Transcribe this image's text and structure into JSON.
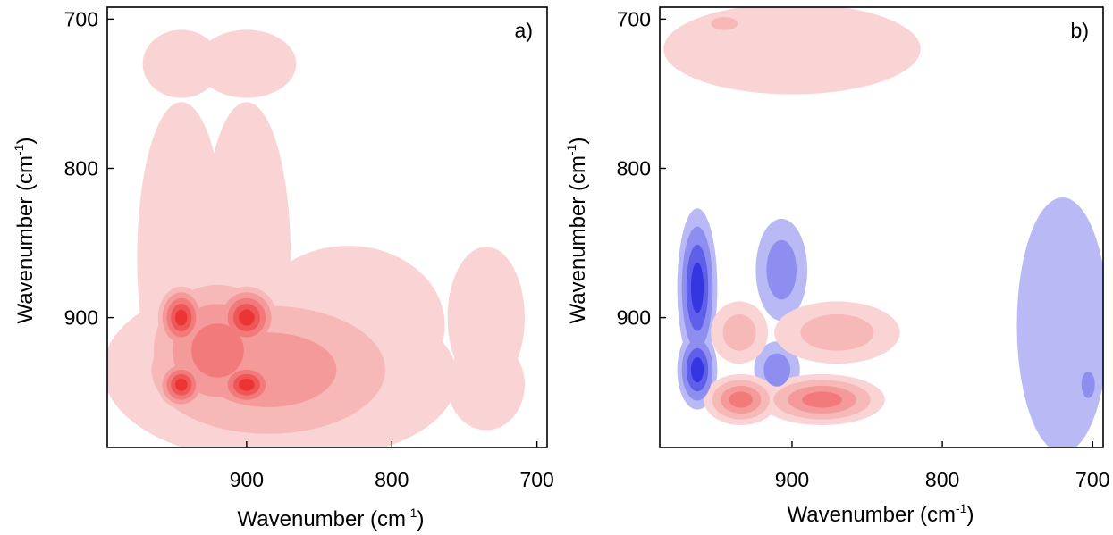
{
  "colors": {
    "positive_levels": [
      "#fad4d4",
      "#f7b8b8",
      "#f59a9a",
      "#f27a7a",
      "#ef5656",
      "#ec3434"
    ],
    "negative_levels": [
      "#b9b9f5",
      "#8e8ef0",
      "#5f5fe9",
      "#3535e2"
    ],
    "frame": "#000000"
  },
  "chart_data": [
    {
      "type": "heatmap",
      "panel_label": "a)",
      "title": "",
      "xlabel": "Wavenumber (cm",
      "xlabel_sup": "-1",
      "xlabel_suffix": ")",
      "ylabel": "Wavenumber (cm",
      "ylabel_sup": "-1",
      "ylabel_suffix": ")",
      "x_direction": "reversed",
      "y_direction": "reversed",
      "xlim": [
        996,
        693
      ],
      "ylim": [
        692,
        987
      ],
      "xticks": [
        {
          "value": 900,
          "label": "900"
        },
        {
          "value": 800,
          "label": "800"
        },
        {
          "value": 700,
          "label": "700"
        }
      ],
      "yticks": [
        {
          "value": 700,
          "label": "700"
        },
        {
          "value": 800,
          "label": "800"
        },
        {
          "value": 900,
          "label": "900"
        }
      ],
      "description": "Synchronous 2D correlation spectrum: positive intensity only; autopeaks near 945 and 900 cm-1 with cross peaks between them; weaker features near 735 cm-1.",
      "peaks": [
        {
          "x": 945,
          "y": 945,
          "sign": 1,
          "level": 6,
          "sx": 10,
          "sy": 10
        },
        {
          "x": 900,
          "y": 945,
          "sign": 1,
          "level": 6,
          "sx": 13,
          "sy": 10
        },
        {
          "x": 945,
          "y": 900,
          "sign": 1,
          "level": 6,
          "sx": 10,
          "sy": 13
        },
        {
          "x": 900,
          "y": 900,
          "sign": 1,
          "level": 6,
          "sx": 13,
          "sy": 13
        },
        {
          "x": 920,
          "y": 922,
          "sign": 1,
          "level": 4,
          "sx": 30,
          "sy": 30
        },
        {
          "x": 885,
          "y": 935,
          "sign": 1,
          "level": 3,
          "sx": 60,
          "sy": 32
        },
        {
          "x": 850,
          "y": 940,
          "sign": 1,
          "level": 1,
          "sx": 50,
          "sy": 28
        },
        {
          "x": 830,
          "y": 905,
          "sign": 1,
          "level": 1,
          "sx": 35,
          "sy": 28
        },
        {
          "x": 945,
          "y": 860,
          "sign": 1,
          "level": 1,
          "sx": 16,
          "sy": 55
        },
        {
          "x": 900,
          "y": 860,
          "sign": 1,
          "level": 1,
          "sx": 16,
          "sy": 55
        },
        {
          "x": 735,
          "y": 945,
          "sign": 1,
          "level": 1,
          "sx": 14,
          "sy": 16
        },
        {
          "x": 735,
          "y": 900,
          "sign": 1,
          "level": 1,
          "sx": 14,
          "sy": 25
        },
        {
          "x": 945,
          "y": 730,
          "sign": 1,
          "level": 1,
          "sx": 14,
          "sy": 12
        },
        {
          "x": 900,
          "y": 730,
          "sign": 1,
          "level": 1,
          "sx": 18,
          "sy": 12
        }
      ]
    },
    {
      "type": "heatmap",
      "panel_label": "b)",
      "title": "",
      "xlabel": "Wavenumber (cm",
      "xlabel_sup": "-1",
      "xlabel_suffix": ")",
      "ylabel": "Wavenumber (cm",
      "ylabel_sup": "-1",
      "ylabel_suffix": ")",
      "x_direction": "reversed",
      "y_direction": "reversed",
      "xlim": [
        988,
        693
      ],
      "ylim": [
        692,
        987
      ],
      "xticks": [
        {
          "value": 900,
          "label": "900"
        },
        {
          "value": 800,
          "label": "800"
        },
        {
          "value": 700,
          "label": "700"
        }
      ],
      "yticks": [
        {
          "value": 700,
          "label": "700"
        },
        {
          "value": 800,
          "label": "800"
        },
        {
          "value": 900,
          "label": "900"
        }
      ],
      "description": "Asynchronous 2D correlation spectrum: positive (red) and negative (blue) cross peaks.",
      "peaks": [
        {
          "x": 963,
          "y": 880,
          "sign": -1,
          "level": 4,
          "sx": 7,
          "sy": 28
        },
        {
          "x": 963,
          "y": 935,
          "sign": -1,
          "level": 4,
          "sx": 7,
          "sy": 14
        },
        {
          "x": 907,
          "y": 868,
          "sign": -1,
          "level": 2,
          "sx": 9,
          "sy": 18
        },
        {
          "x": 910,
          "y": 935,
          "sign": -1,
          "level": 2,
          "sx": 8,
          "sy": 10
        },
        {
          "x": 720,
          "y": 905,
          "sign": -1,
          "level": 1,
          "sx": 16,
          "sy": 45
        },
        {
          "x": 703,
          "y": 945,
          "sign": -1,
          "level": 2,
          "sx": 4,
          "sy": 8
        },
        {
          "x": 934,
          "y": 955,
          "sign": 1,
          "level": 4,
          "sx": 13,
          "sy": 9
        },
        {
          "x": 880,
          "y": 955,
          "sign": 1,
          "level": 4,
          "sx": 22,
          "sy": 9
        },
        {
          "x": 935,
          "y": 910,
          "sign": 1,
          "level": 2,
          "sx": 10,
          "sy": 11
        },
        {
          "x": 870,
          "y": 910,
          "sign": 1,
          "level": 2,
          "sx": 22,
          "sy": 11
        },
        {
          "x": 900,
          "y": 720,
          "sign": 1,
          "level": 1,
          "sx": 45,
          "sy": 16
        },
        {
          "x": 945,
          "y": 703,
          "sign": 1,
          "level": 2,
          "sx": 8,
          "sy": 4
        }
      ]
    }
  ]
}
